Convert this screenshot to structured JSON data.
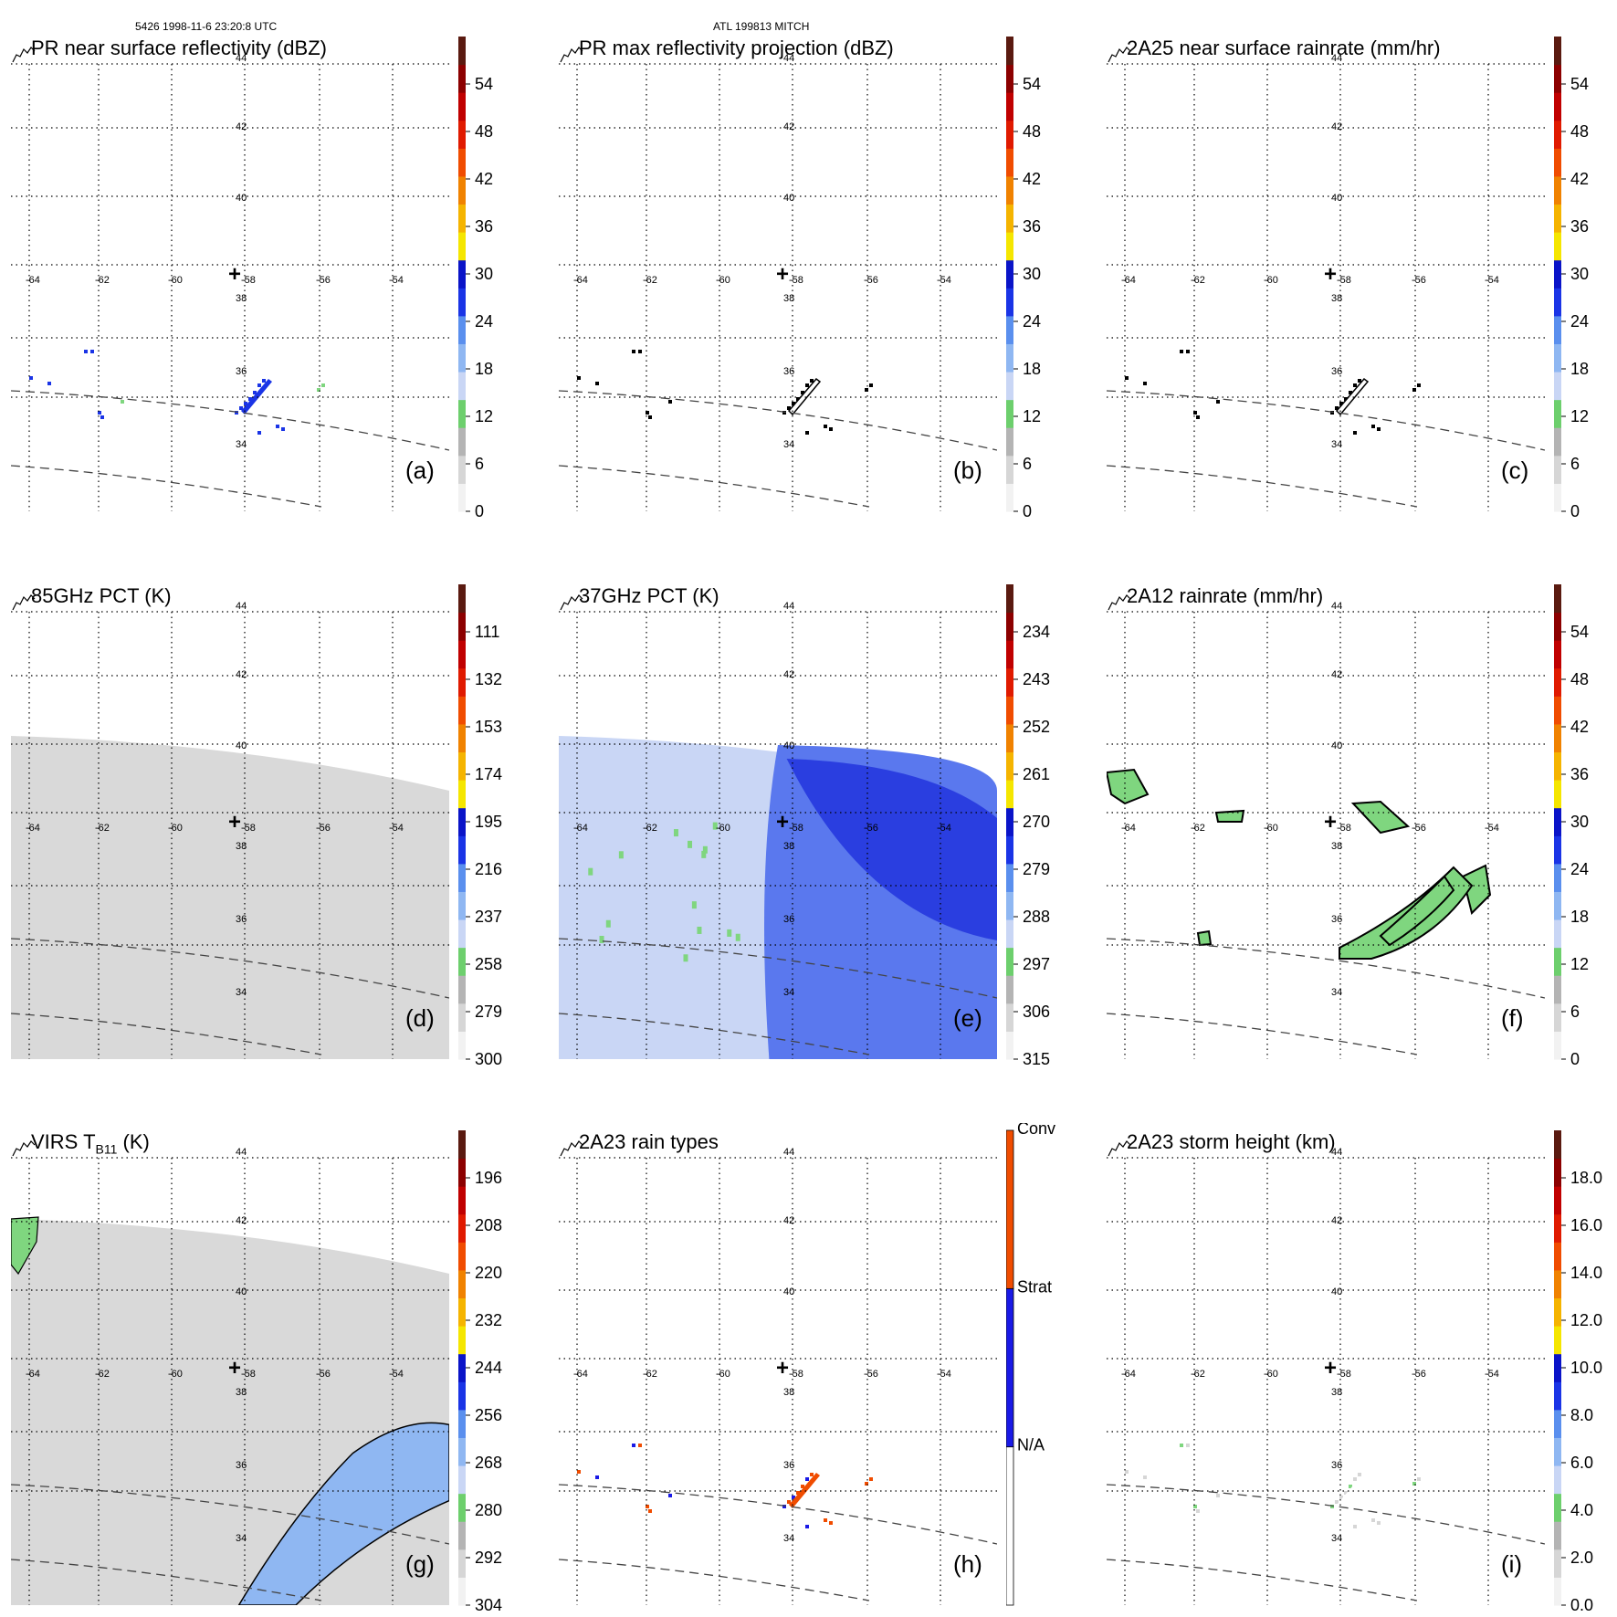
{
  "header": {
    "left": "5426 1998-11-6 23:20:8 UTC",
    "center": "ATL 199813 MITCH"
  },
  "map": {
    "lon_labels": [
      "-64",
      "-62",
      "-60",
      "-58",
      "-56",
      "-54"
    ],
    "lat_labels": [
      "44",
      "42",
      "40",
      "38",
      "36",
      "34"
    ],
    "center_marker": "+"
  },
  "panels": [
    {
      "id": "a",
      "title": "PR near surface reflectivity (dBZ)",
      "label": "(a)",
      "colorbar": [
        "0",
        "6",
        "12",
        "18",
        "24",
        "30",
        "36",
        "42",
        "48",
        "54"
      ]
    },
    {
      "id": "b",
      "title": "PR max reflectivity projection (dBZ)",
      "label": "(b)",
      "colorbar": [
        "0",
        "6",
        "12",
        "18",
        "24",
        "30",
        "36",
        "42",
        "48",
        "54"
      ]
    },
    {
      "id": "c",
      "title": "2A25 near surface rainrate (mm/hr)",
      "label": "(c)",
      "colorbar": [
        "0",
        "6",
        "12",
        "18",
        "24",
        "30",
        "36",
        "42",
        "48",
        "54"
      ]
    },
    {
      "id": "d",
      "title": "85GHz PCT (K)",
      "label": "(d)",
      "colorbar": [
        "300",
        "279",
        "258",
        "237",
        "216",
        "195",
        "174",
        "153",
        "132",
        "111"
      ]
    },
    {
      "id": "e",
      "title": "37GHz PCT (K)",
      "label": "(e)",
      "colorbar": [
        "315",
        "306",
        "297",
        "288",
        "279",
        "270",
        "261",
        "252",
        "243",
        "234"
      ]
    },
    {
      "id": "f",
      "title": "2A12 rainrate (mm/hr)",
      "label": "(f)",
      "colorbar": [
        "0",
        "6",
        "12",
        "18",
        "24",
        "30",
        "36",
        "42",
        "48",
        "54"
      ]
    },
    {
      "id": "g",
      "title": "VIRS T",
      "title_sub": "B11",
      "title_suffix": " (K)",
      "label": "(g)",
      "colorbar": [
        "304",
        "292",
        "280",
        "268",
        "256",
        "244",
        "232",
        "220",
        "208",
        "196"
      ]
    },
    {
      "id": "h",
      "title": "2A23 rain types",
      "label": "(h)",
      "colorbar": [
        "N/A",
        "Strat",
        "Conv"
      ]
    },
    {
      "id": "i",
      "title": "2A23 storm height (km)",
      "label": "(i)",
      "colorbar": [
        "0.0",
        "2.0",
        "4.0",
        "6.0",
        "8.0",
        "10.0",
        "12.0",
        "14.0",
        "16.0",
        "18.0"
      ]
    }
  ],
  "colors": {
    "scale": [
      "#f2f2f2",
      "#d6d6d6",
      "#b4b4b4",
      "#6dcf6d",
      "#c9d6f5",
      "#8fb7f2",
      "#5a8fee",
      "#1a34e6",
      "#0a14c8",
      "#f5e600",
      "#f5b400",
      "#f08200",
      "#f04c00",
      "#e01a00",
      "#c00000",
      "#8c0000",
      "#5a1a10"
    ],
    "conv": "#f04c00",
    "strat": "#1a1ae6",
    "rain_green": "#7fd67f",
    "stipple_blue": "#5a8fee"
  }
}
